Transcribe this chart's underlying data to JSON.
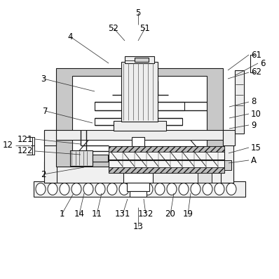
{
  "bg": "#ffffff",
  "lc": "#1a1a1a",
  "gray_stipple": "#cccccc",
  "gray_light": "#e8e8e8",
  "gray_med": "#d4d4d4",
  "figw": 3.98,
  "figh": 3.97,
  "dpi": 100,
  "labels": {
    "5": [
      197,
      18,
      197,
      35,
      "center"
    ],
    "52": [
      162,
      40,
      178,
      58,
      "center"
    ],
    "51": [
      207,
      40,
      197,
      58,
      "center"
    ],
    "4": [
      100,
      52,
      155,
      90,
      "center"
    ],
    "61": [
      355,
      78,
      325,
      100,
      "left"
    ],
    "6": [
      368,
      90,
      336,
      107,
      "left"
    ],
    "62": [
      355,
      103,
      325,
      112,
      "left"
    ],
    "3": [
      62,
      112,
      135,
      130,
      "center"
    ],
    "8": [
      355,
      145,
      327,
      152,
      "left"
    ],
    "7": [
      65,
      158,
      132,
      175,
      "center"
    ],
    "10": [
      355,
      162,
      327,
      168,
      "left"
    ],
    "9": [
      355,
      178,
      327,
      183,
      "left"
    ],
    "121": [
      50,
      198,
      115,
      205,
      "right"
    ],
    "122": [
      50,
      215,
      115,
      220,
      "right"
    ],
    "12": [
      22,
      207,
      42,
      207,
      "right"
    ],
    "15": [
      355,
      210,
      326,
      218,
      "left"
    ],
    "A": [
      355,
      228,
      326,
      232,
      "left"
    ],
    "2": [
      62,
      248,
      120,
      238,
      "center"
    ],
    "1": [
      88,
      305,
      105,
      275,
      "center"
    ],
    "14": [
      113,
      305,
      120,
      275,
      "center"
    ],
    "11": [
      138,
      305,
      145,
      275,
      "center"
    ],
    "131": [
      175,
      305,
      182,
      283,
      "center"
    ],
    "132": [
      208,
      305,
      205,
      283,
      "center"
    ],
    "20": [
      243,
      305,
      248,
      275,
      "center"
    ],
    "19": [
      268,
      305,
      272,
      275,
      "center"
    ],
    "13": [
      197,
      322,
      197,
      295,
      "center"
    ]
  }
}
